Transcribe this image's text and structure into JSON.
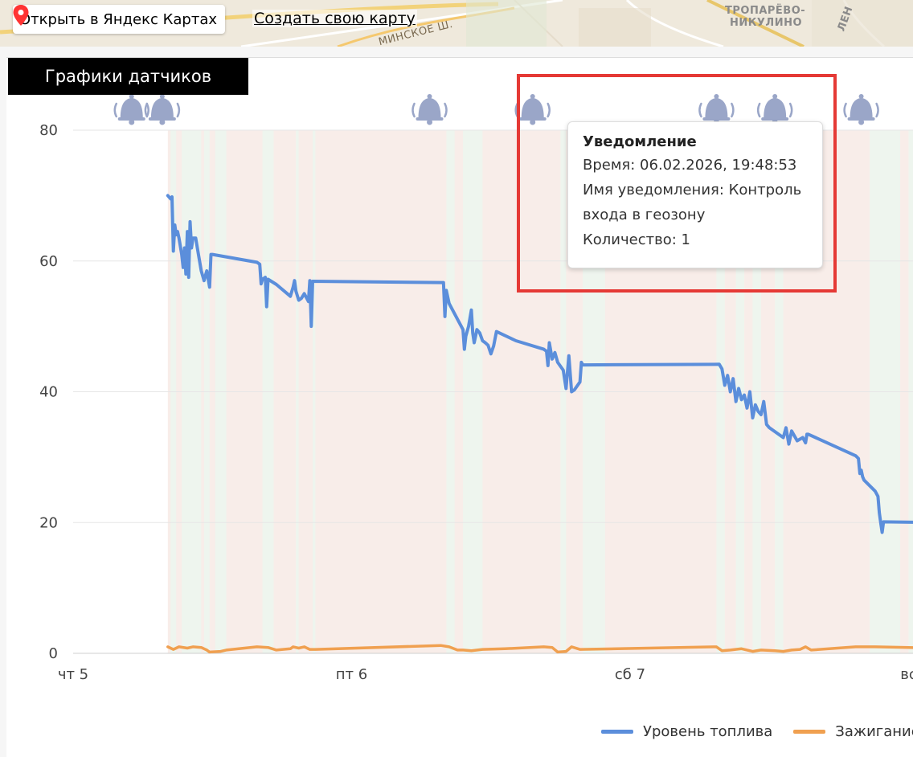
{
  "map": {
    "open_label": "Открыть в Яндекс Картах",
    "create_label": "Создать свою карту",
    "labels": [
      {
        "text": "МИНСКОЕ Ш."
      },
      {
        "text": "ТРОПАРЁВО-"
      },
      {
        "text": "НИКУЛИНО"
      },
      {
        "text": "ЛЕН"
      }
    ]
  },
  "panel": {
    "title": "Графики датчиков"
  },
  "tooltip": {
    "title": "Уведомление",
    "time": "Время: 06.02.2026, 19:48:53",
    "name_line1": "Имя уведомления: Контроль",
    "name_line2": "входа в геозону",
    "count": "Количество: 1"
  },
  "chart_data": {
    "type": "line",
    "ylim": [
      0,
      80
    ],
    "yticks": [
      0,
      20,
      40,
      60,
      80
    ],
    "xlim": [
      0,
      3.1
    ],
    "xticks": [
      {
        "value": 0,
        "label": "чт 5"
      },
      {
        "value": 1,
        "label": "пт 6"
      },
      {
        "value": 2,
        "label": "сб 7"
      },
      {
        "value": 3,
        "label": "вс"
      }
    ],
    "grid": true,
    "legend_position": "bottom-right",
    "colors": {
      "fuel": "#5b8edb",
      "ignition": "#f0a050",
      "band_on": "#eef5ee",
      "band_off": "#f8ede9",
      "bell": "#9aa6c8"
    },
    "bands": [
      {
        "x0": 0.35,
        "x1": 0.37,
        "state": "on"
      },
      {
        "x0": 0.39,
        "x1": 0.46,
        "state": "on"
      },
      {
        "x0": 0.47,
        "x1": 0.49,
        "state": "on"
      },
      {
        "x0": 0.51,
        "x1": 0.55,
        "state": "on"
      },
      {
        "x0": 0.68,
        "x1": 0.72,
        "state": "on"
      },
      {
        "x0": 0.8,
        "x1": 0.81,
        "state": "on"
      },
      {
        "x0": 0.86,
        "x1": 0.87,
        "state": "on"
      },
      {
        "x0": 1.34,
        "x1": 1.37,
        "state": "on"
      },
      {
        "x0": 1.4,
        "x1": 1.47,
        "state": "on"
      },
      {
        "x0": 1.75,
        "x1": 1.77,
        "state": "on"
      },
      {
        "x0": 1.83,
        "x1": 1.91,
        "state": "on"
      },
      {
        "x0": 2.31,
        "x1": 2.34,
        "state": "on"
      },
      {
        "x0": 2.38,
        "x1": 2.41,
        "state": "on"
      },
      {
        "x0": 2.44,
        "x1": 2.47,
        "state": "on"
      },
      {
        "x0": 2.52,
        "x1": 2.55,
        "state": "on"
      },
      {
        "x0": 2.86,
        "x1": 2.97,
        "state": "on"
      },
      {
        "x0": 3.0,
        "x1": 3.02,
        "state": "on"
      }
    ],
    "bells": [
      0.21,
      0.32,
      1.28,
      1.65,
      2.31,
      2.52,
      2.83
    ],
    "series": [
      {
        "name": "Уровень топлива",
        "key": "fuel",
        "points": [
          [
            0.34,
            70
          ],
          [
            0.35,
            69.5
          ],
          [
            0.355,
            69.8
          ],
          [
            0.36,
            61.5
          ],
          [
            0.365,
            65.5
          ],
          [
            0.37,
            64
          ],
          [
            0.375,
            64.5
          ],
          [
            0.38,
            63.5
          ],
          [
            0.39,
            61
          ],
          [
            0.395,
            59
          ],
          [
            0.4,
            62
          ],
          [
            0.405,
            58
          ],
          [
            0.41,
            64.5
          ],
          [
            0.415,
            57.5
          ],
          [
            0.42,
            66
          ],
          [
            0.425,
            62
          ],
          [
            0.43,
            63.5
          ],
          [
            0.44,
            63.5
          ],
          [
            0.45,
            61
          ],
          [
            0.46,
            58.5
          ],
          [
            0.47,
            57
          ],
          [
            0.48,
            58.5
          ],
          [
            0.49,
            56
          ],
          [
            0.495,
            61
          ],
          [
            0.5,
            61
          ],
          [
            0.66,
            59.8
          ],
          [
            0.67,
            59.5
          ],
          [
            0.675,
            56.5
          ],
          [
            0.68,
            57.2
          ],
          [
            0.69,
            57.5
          ],
          [
            0.695,
            53
          ],
          [
            0.7,
            57.2
          ],
          [
            0.73,
            56.4
          ],
          [
            0.78,
            54.6
          ],
          [
            0.79,
            56
          ],
          [
            0.795,
            57
          ],
          [
            0.8,
            55.4
          ],
          [
            0.81,
            54
          ],
          [
            0.82,
            54.3
          ],
          [
            0.83,
            55
          ],
          [
            0.84,
            54.2
          ],
          [
            0.845,
            53.8
          ],
          [
            0.85,
            57
          ],
          [
            0.855,
            50
          ],
          [
            0.86,
            56.9
          ],
          [
            1.32,
            56.7
          ],
          [
            1.33,
            56.7
          ],
          [
            1.335,
            51.5
          ],
          [
            1.34,
            55.5
          ],
          [
            1.35,
            53.5
          ],
          [
            1.4,
            49.5
          ],
          [
            1.405,
            46.5
          ],
          [
            1.41,
            48.5
          ],
          [
            1.42,
            50
          ],
          [
            1.43,
            52.5
          ],
          [
            1.435,
            49
          ],
          [
            1.44,
            47.5
          ],
          [
            1.45,
            49.5
          ],
          [
            1.46,
            49
          ],
          [
            1.47,
            47.8
          ],
          [
            1.48,
            47.5
          ],
          [
            1.49,
            47.1
          ],
          [
            1.5,
            45.8
          ],
          [
            1.51,
            47
          ],
          [
            1.52,
            49.2
          ],
          [
            1.59,
            47.8
          ],
          [
            1.69,
            46.5
          ],
          [
            1.7,
            46.2
          ],
          [
            1.705,
            44
          ],
          [
            1.71,
            47.5
          ],
          [
            1.72,
            45
          ],
          [
            1.73,
            46
          ],
          [
            1.74,
            44.5
          ],
          [
            1.76,
            43.3
          ],
          [
            1.77,
            40.5
          ],
          [
            1.78,
            45.5
          ],
          [
            1.79,
            40
          ],
          [
            1.8,
            40.3
          ],
          [
            1.82,
            41.5
          ],
          [
            1.825,
            44.5
          ],
          [
            1.83,
            44.1
          ],
          [
            2.32,
            44.2
          ],
          [
            2.33,
            43.5
          ],
          [
            2.34,
            41
          ],
          [
            2.35,
            42.5
          ],
          [
            2.36,
            40
          ],
          [
            2.37,
            42
          ],
          [
            2.38,
            38.5
          ],
          [
            2.39,
            40.5
          ],
          [
            2.4,
            38.8
          ],
          [
            2.41,
            39.5
          ],
          [
            2.42,
            37.5
          ],
          [
            2.43,
            40
          ],
          [
            2.44,
            36
          ],
          [
            2.45,
            38
          ],
          [
            2.46,
            37
          ],
          [
            2.47,
            36.5
          ],
          [
            2.48,
            38.5
          ],
          [
            2.49,
            35
          ],
          [
            2.5,
            34.5
          ],
          [
            2.55,
            33
          ],
          [
            2.56,
            34.5
          ],
          [
            2.57,
            32
          ],
          [
            2.58,
            34
          ],
          [
            2.6,
            32.5
          ],
          [
            2.62,
            33
          ],
          [
            2.63,
            32.2
          ],
          [
            2.635,
            33.5
          ],
          [
            2.64,
            33.5
          ],
          [
            2.81,
            30.2
          ],
          [
            2.82,
            29.8
          ],
          [
            2.825,
            27.5
          ],
          [
            2.83,
            28
          ],
          [
            2.835,
            27
          ],
          [
            2.84,
            26.5
          ],
          [
            2.88,
            24.8
          ],
          [
            2.89,
            24
          ],
          [
            2.895,
            21.5
          ],
          [
            2.9,
            20
          ],
          [
            2.905,
            18.5
          ],
          [
            2.91,
            20.1
          ],
          [
            3.1,
            20
          ]
        ]
      },
      {
        "name": "Зажигание",
        "key": "ignition",
        "points": [
          [
            0.34,
            1
          ],
          [
            0.36,
            0.6
          ],
          [
            0.38,
            1
          ],
          [
            0.41,
            0.8
          ],
          [
            0.43,
            1
          ],
          [
            0.46,
            0.9
          ],
          [
            0.48,
            0.5
          ],
          [
            0.49,
            0.2
          ],
          [
            0.53,
            0.3
          ],
          [
            0.55,
            0.5
          ],
          [
            0.66,
            1
          ],
          [
            0.7,
            0.9
          ],
          [
            0.73,
            0.5
          ],
          [
            0.78,
            0.7
          ],
          [
            0.79,
            1
          ],
          [
            0.81,
            0.8
          ],
          [
            0.83,
            1
          ],
          [
            0.85,
            0.6
          ],
          [
            0.87,
            0.6
          ],
          [
            1.32,
            1.2
          ],
          [
            1.35,
            1
          ],
          [
            1.38,
            0.5
          ],
          [
            1.4,
            0.5
          ],
          [
            1.43,
            0.4
          ],
          [
            1.47,
            0.6
          ],
          [
            1.55,
            0.7
          ],
          [
            1.69,
            1
          ],
          [
            1.72,
            0.9
          ],
          [
            1.74,
            0.2
          ],
          [
            1.77,
            0.3
          ],
          [
            1.79,
            1
          ],
          [
            1.82,
            0.6
          ],
          [
            2.31,
            1
          ],
          [
            2.33,
            0.4
          ],
          [
            2.36,
            0.5
          ],
          [
            2.4,
            0.7
          ],
          [
            2.44,
            0.3
          ],
          [
            2.47,
            0.5
          ],
          [
            2.52,
            0.4
          ],
          [
            2.55,
            0.3
          ],
          [
            2.58,
            0.5
          ],
          [
            2.61,
            0.6
          ],
          [
            2.63,
            1
          ],
          [
            2.65,
            0.5
          ],
          [
            2.81,
            1
          ],
          [
            2.88,
            1
          ],
          [
            3.1,
            0.8
          ]
        ]
      }
    ]
  }
}
